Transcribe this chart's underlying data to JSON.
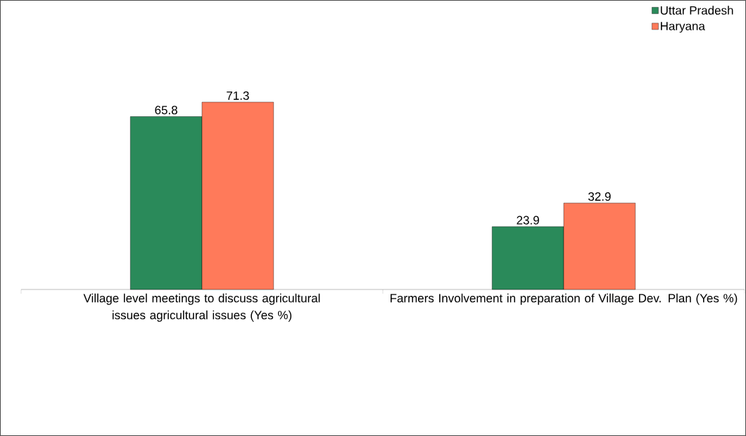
{
  "chart_data": {
    "type": "bar",
    "categories": [
      "Village level meetings to discuss agricultural issues agricultural issues (Yes %)",
      "Farmers Involvement in preparation of Village Dev. Plan (Yes %)"
    ],
    "series": [
      {
        "name": "Uttar Pradesh",
        "color": "#2a8a5a",
        "values": [
          65.8,
          23.9
        ]
      },
      {
        "name": "Haryana",
        "color": "#ff7a5a",
        "values": [
          71.3,
          32.9
        ]
      }
    ],
    "data_labels": true,
    "legend": "top right"
  }
}
